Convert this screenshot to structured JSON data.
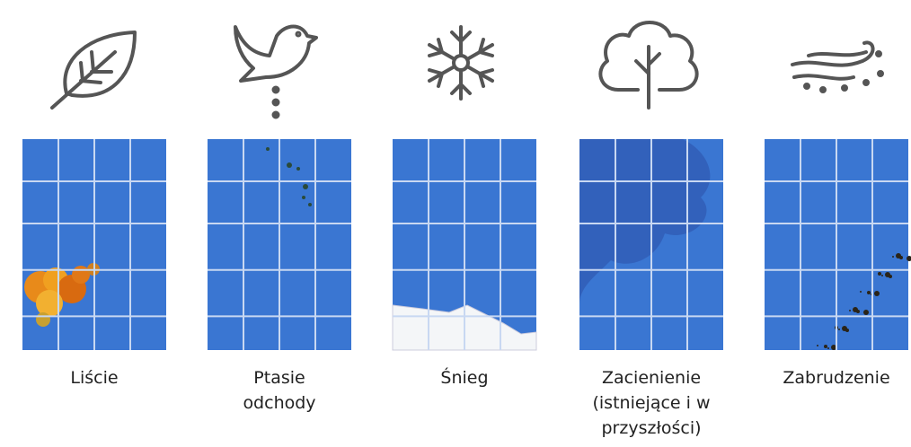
{
  "items": [
    {
      "label": [
        "Liście"
      ]
    },
    {
      "label": [
        "Ptasie",
        "odchody"
      ]
    },
    {
      "label": [
        "Śnieg"
      ]
    },
    {
      "label": [
        "Zacienienie",
        "(istniejące i w",
        "przyszłości)"
      ]
    },
    {
      "label": [
        "Zabrudzenie"
      ]
    }
  ]
}
